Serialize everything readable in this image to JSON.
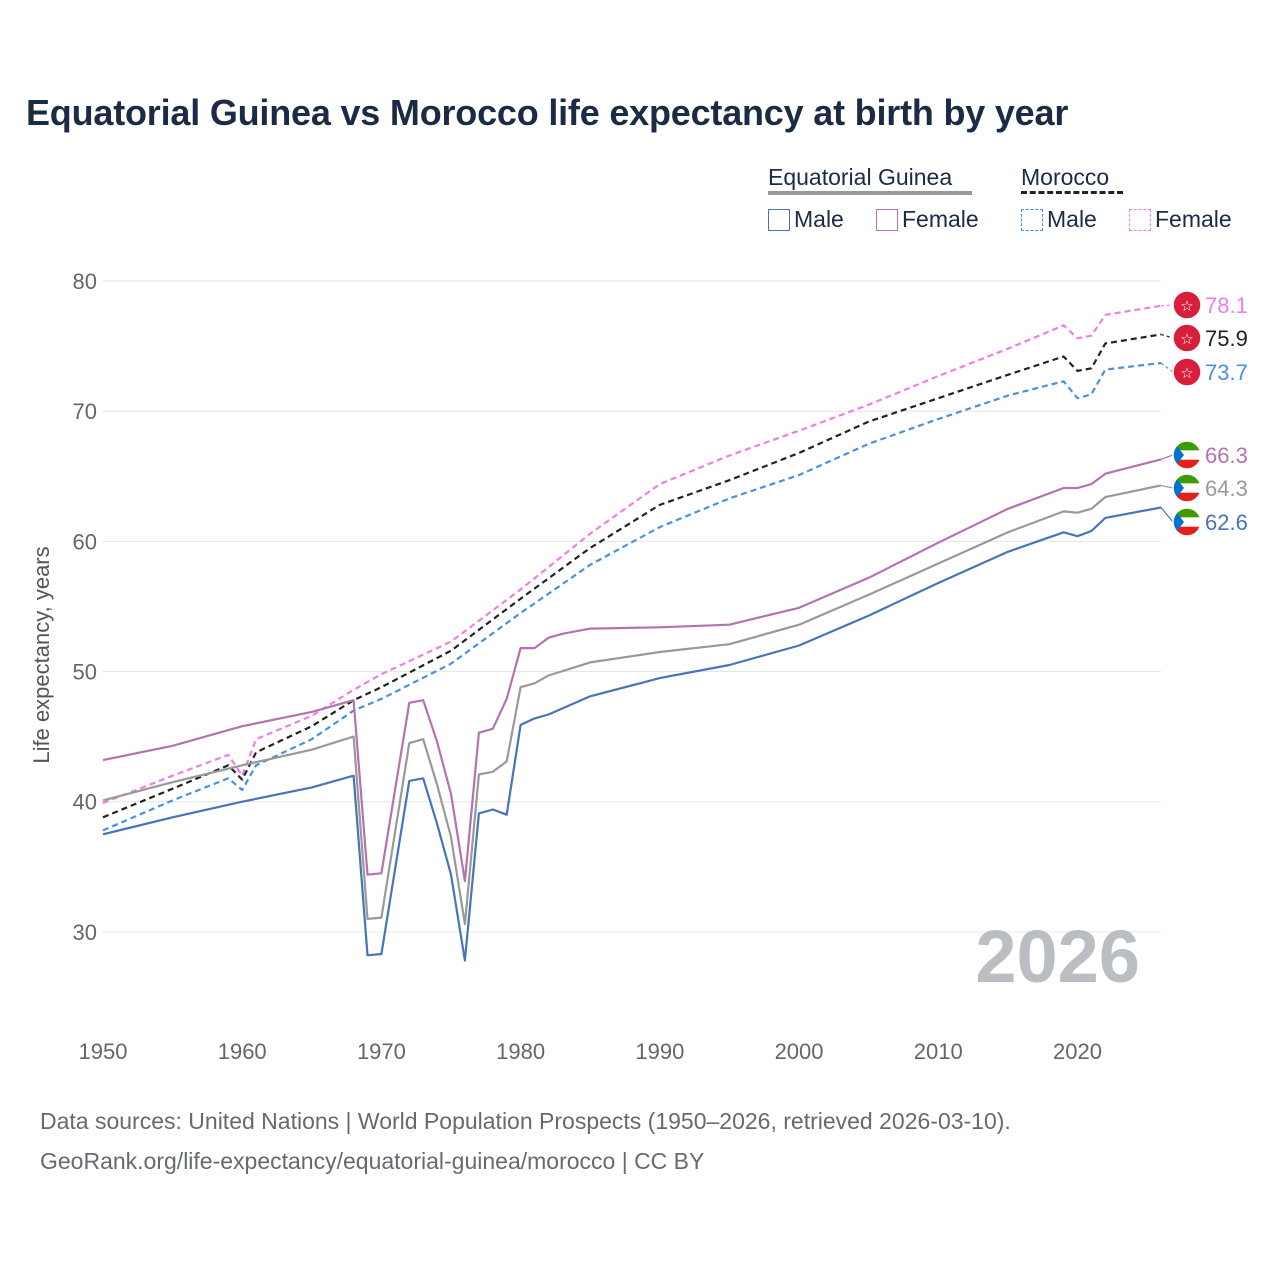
{
  "title": "Equatorial Guinea vs Morocco life expectancy at birth by year",
  "legend": {
    "groups": [
      {
        "name": "Equatorial Guinea",
        "line_color": "#999999",
        "line_style": "solid",
        "items": [
          {
            "label": "Male",
            "color": "#4a73b8",
            "style": "solid"
          },
          {
            "label": "Female",
            "color": "#b373b0",
            "style": "solid"
          }
        ]
      },
      {
        "name": "Morocco",
        "line_color": "#222222",
        "line_style": "dashed",
        "items": [
          {
            "label": "Male",
            "color": "#4a90e2",
            "style": "dashed"
          },
          {
            "label": "Female",
            "color": "#f07ee8",
            "style": "dashed"
          }
        ]
      }
    ]
  },
  "year_watermark": "2026",
  "footer": {
    "line1": "Data sources: United Nations | World Population Prospects (1950–2026, retrieved 2026-03-10).",
    "line2": "GeoRank.org/life-expectancy/equatorial-guinea/morocco | CC BY"
  },
  "chart_data": {
    "type": "line",
    "title": "Equatorial Guinea vs Morocco life expectancy at birth by year",
    "xlabel": "",
    "ylabel": "Life expectancy, years",
    "xlim": [
      1950,
      2026
    ],
    "ylim": [
      24,
      82
    ],
    "x_ticks": [
      1950,
      1960,
      1970,
      1980,
      1990,
      2000,
      2010,
      2020
    ],
    "y_ticks": [
      30,
      40,
      50,
      60,
      70,
      80
    ],
    "grid": true,
    "series": [
      {
        "name": "Morocco Female",
        "country": "Morocco",
        "color": "#f07ee8",
        "dash": true,
        "end_label": "78.1",
        "flag": "morocco",
        "points": [
          [
            1950,
            39.9
          ],
          [
            1955,
            42.0
          ],
          [
            1959,
            43.6
          ],
          [
            1960,
            42.0
          ],
          [
            1961,
            44.8
          ],
          [
            1965,
            46.6
          ],
          [
            1968,
            48.6
          ],
          [
            1970,
            49.8
          ],
          [
            1975,
            52.3
          ],
          [
            1980,
            56.3
          ],
          [
            1985,
            60.6
          ],
          [
            1990,
            64.4
          ],
          [
            1995,
            66.6
          ],
          [
            2000,
            68.5
          ],
          [
            2005,
            70.5
          ],
          [
            2010,
            72.7
          ],
          [
            2015,
            74.8
          ],
          [
            2019,
            76.6
          ],
          [
            2020,
            75.6
          ],
          [
            2021,
            75.8
          ],
          [
            2022,
            77.4
          ],
          [
            2026,
            78.1
          ]
        ]
      },
      {
        "name": "Morocco Total",
        "country": "Morocco",
        "color": "#222222",
        "dash": true,
        "end_label": "75.9",
        "flag": "morocco",
        "points": [
          [
            1950,
            38.8
          ],
          [
            1955,
            41.0
          ],
          [
            1959,
            42.8
          ],
          [
            1960,
            41.7
          ],
          [
            1961,
            43.8
          ],
          [
            1965,
            45.8
          ],
          [
            1968,
            47.8
          ],
          [
            1970,
            48.8
          ],
          [
            1975,
            51.6
          ],
          [
            1980,
            55.6
          ],
          [
            1985,
            59.5
          ],
          [
            1990,
            62.8
          ],
          [
            1995,
            64.7
          ],
          [
            2000,
            66.8
          ],
          [
            2005,
            69.2
          ],
          [
            2010,
            71.0
          ],
          [
            2015,
            72.8
          ],
          [
            2019,
            74.2
          ],
          [
            2020,
            73.1
          ],
          [
            2021,
            73.3
          ],
          [
            2022,
            75.2
          ],
          [
            2026,
            75.9
          ]
        ]
      },
      {
        "name": "Morocco Male",
        "country": "Morocco",
        "color": "#4a90e2",
        "dash": true,
        "end_label": "73.7",
        "flag": "morocco",
        "points": [
          [
            1950,
            37.8
          ],
          [
            1955,
            40.1
          ],
          [
            1959,
            41.8
          ],
          [
            1960,
            40.9
          ],
          [
            1961,
            42.8
          ],
          [
            1965,
            44.8
          ],
          [
            1968,
            47.0
          ],
          [
            1970,
            47.9
          ],
          [
            1975,
            50.6
          ],
          [
            1980,
            54.5
          ],
          [
            1985,
            58.2
          ],
          [
            1990,
            61.1
          ],
          [
            1995,
            63.3
          ],
          [
            2000,
            65.1
          ],
          [
            2005,
            67.5
          ],
          [
            2010,
            69.4
          ],
          [
            2015,
            71.2
          ],
          [
            2019,
            72.3
          ],
          [
            2020,
            71.0
          ],
          [
            2021,
            71.3
          ],
          [
            2022,
            73.2
          ],
          [
            2026,
            73.7
          ]
        ]
      },
      {
        "name": "Equatorial Guinea Female",
        "country": "Equatorial Guinea",
        "color": "#b373b0",
        "dash": false,
        "end_label": "66.3",
        "flag": "eq-guinea",
        "points": [
          [
            1950,
            43.2
          ],
          [
            1955,
            44.3
          ],
          [
            1960,
            45.8
          ],
          [
            1965,
            46.9
          ],
          [
            1968,
            47.8
          ],
          [
            1969,
            34.4
          ],
          [
            1970,
            34.5
          ],
          [
            1972,
            47.6
          ],
          [
            1973,
            47.8
          ],
          [
            1974,
            44.6
          ],
          [
            1975,
            40.6
          ],
          [
            1976,
            33.9
          ],
          [
            1977,
            45.3
          ],
          [
            1978,
            45.6
          ],
          [
            1979,
            47.9
          ],
          [
            1980,
            51.8
          ],
          [
            1981,
            51.8
          ],
          [
            1982,
            52.6
          ],
          [
            1983,
            52.9
          ],
          [
            1985,
            53.3
          ],
          [
            1990,
            53.4
          ],
          [
            1995,
            53.6
          ],
          [
            2000,
            54.9
          ],
          [
            2005,
            57.2
          ],
          [
            2010,
            59.9
          ],
          [
            2015,
            62.5
          ],
          [
            2019,
            64.1
          ],
          [
            2020,
            64.1
          ],
          [
            2021,
            64.4
          ],
          [
            2022,
            65.2
          ],
          [
            2026,
            66.3
          ]
        ]
      },
      {
        "name": "Equatorial Guinea Total",
        "country": "Equatorial Guinea",
        "color": "#999999",
        "dash": false,
        "end_label": "64.3",
        "flag": "eq-guinea",
        "points": [
          [
            1950,
            40.1
          ],
          [
            1955,
            41.5
          ],
          [
            1960,
            42.8
          ],
          [
            1965,
            44.0
          ],
          [
            1968,
            45.0
          ],
          [
            1969,
            31.0
          ],
          [
            1970,
            31.1
          ],
          [
            1972,
            44.5
          ],
          [
            1973,
            44.8
          ],
          [
            1974,
            41.3
          ],
          [
            1975,
            37.3
          ],
          [
            1976,
            30.6
          ],
          [
            1977,
            42.1
          ],
          [
            1978,
            42.3
          ],
          [
            1979,
            43.1
          ],
          [
            1980,
            48.8
          ],
          [
            1981,
            49.1
          ],
          [
            1982,
            49.7
          ],
          [
            1985,
            50.7
          ],
          [
            1990,
            51.5
          ],
          [
            1995,
            52.1
          ],
          [
            2000,
            53.6
          ],
          [
            2005,
            55.9
          ],
          [
            2010,
            58.3
          ],
          [
            2015,
            60.7
          ],
          [
            2019,
            62.3
          ],
          [
            2020,
            62.2
          ],
          [
            2021,
            62.5
          ],
          [
            2022,
            63.4
          ],
          [
            2026,
            64.3
          ]
        ]
      },
      {
        "name": "Equatorial Guinea Male",
        "country": "Equatorial Guinea",
        "color": "#4a73b8",
        "dash": false,
        "end_label": "62.6",
        "flag": "eq-guinea",
        "points": [
          [
            1950,
            37.5
          ],
          [
            1955,
            38.8
          ],
          [
            1960,
            40.0
          ],
          [
            1965,
            41.1
          ],
          [
            1968,
            42.0
          ],
          [
            1969,
            28.2
          ],
          [
            1970,
            28.3
          ],
          [
            1972,
            41.6
          ],
          [
            1973,
            41.8
          ],
          [
            1974,
            38.3
          ],
          [
            1975,
            34.4
          ],
          [
            1976,
            27.8
          ],
          [
            1977,
            39.1
          ],
          [
            1978,
            39.4
          ],
          [
            1979,
            39.0
          ],
          [
            1980,
            45.9
          ],
          [
            1981,
            46.4
          ],
          [
            1982,
            46.7
          ],
          [
            1985,
            48.1
          ],
          [
            1990,
            49.5
          ],
          [
            1995,
            50.5
          ],
          [
            2000,
            52.0
          ],
          [
            2005,
            54.3
          ],
          [
            2010,
            56.8
          ],
          [
            2015,
            59.2
          ],
          [
            2019,
            60.7
          ],
          [
            2020,
            60.4
          ],
          [
            2021,
            60.8
          ],
          [
            2022,
            61.8
          ],
          [
            2026,
            62.6
          ]
        ]
      }
    ]
  }
}
